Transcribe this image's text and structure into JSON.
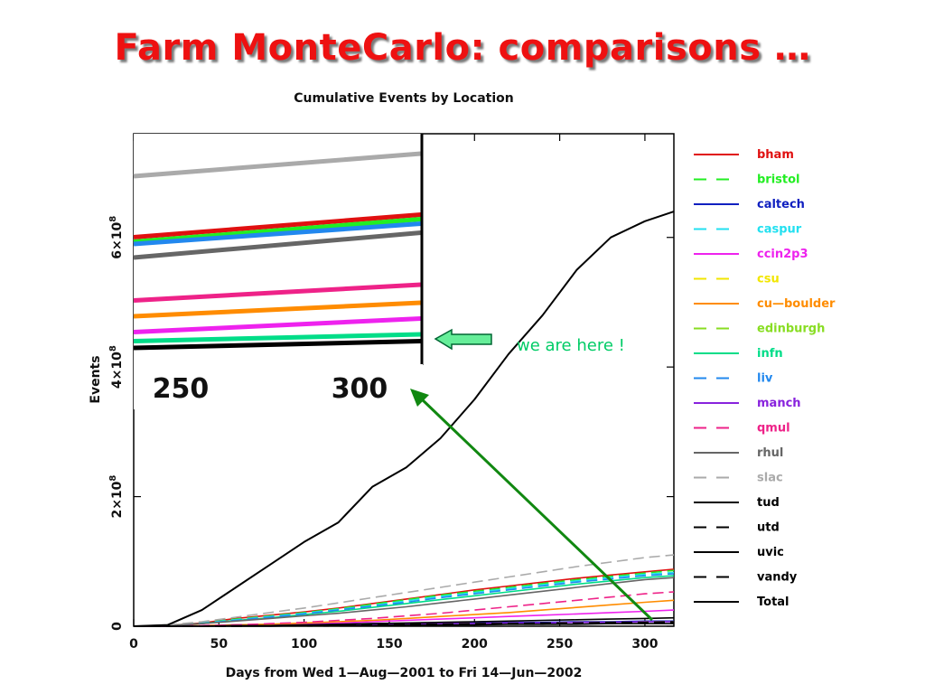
{
  "slide": {
    "title": "Farm MonteCarlo: comparisons …"
  },
  "annotation": {
    "text": "we are here !",
    "color": "#00cc66"
  },
  "chart_data": {
    "type": "line",
    "title": "Cumulative Events by Location",
    "xlabel": "Days from Wed 1—Aug—2001 to Fri 14—Jun—2002",
    "ylabel": "Events",
    "xlim": [
      0,
      317
    ],
    "ylim": [
      0,
      760000000
    ],
    "x_ticks": [
      {
        "value": 0,
        "label": "0"
      },
      {
        "value": 50,
        "label": "50"
      },
      {
        "value": 100,
        "label": "100"
      },
      {
        "value": 150,
        "label": "150"
      },
      {
        "value": 200,
        "label": "200"
      },
      {
        "value": 250,
        "label": "250"
      },
      {
        "value": 300,
        "label": "300"
      }
    ],
    "y_ticks": [
      {
        "value": 0,
        "base": "0",
        "exp": ""
      },
      {
        "value": 200000000,
        "base": "2×10",
        "exp": "8"
      },
      {
        "value": 400000000,
        "base": "4×10",
        "exp": "8"
      },
      {
        "value": 600000000,
        "base": "6×10",
        "exp": "8"
      }
    ],
    "legend_position": "right",
    "x": [
      0,
      20,
      40,
      60,
      80,
      100,
      120,
      140,
      160,
      180,
      200,
      220,
      240,
      260,
      280,
      300,
      317
    ],
    "series": [
      {
        "name": "bham",
        "color": "#e01010",
        "dash": false,
        "values": [
          0,
          1000000,
          5000000,
          12000000,
          17000000,
          22000000,
          28000000,
          35000000,
          42000000,
          49000000,
          56000000,
          62000000,
          68000000,
          74000000,
          79000000,
          84000000,
          88000000
        ]
      },
      {
        "name": "bristol",
        "color": "#22ee22",
        "dash": true,
        "values": [
          0,
          1000000,
          5000000,
          11000000,
          16000000,
          21000000,
          27000000,
          34000000,
          41000000,
          48000000,
          54000000,
          60000000,
          66000000,
          72000000,
          77000000,
          82000000,
          86000000
        ]
      },
      {
        "name": "caltech",
        "color": "#1020c0",
        "dash": false,
        "values": [
          0,
          0,
          1000000,
          2000000,
          2000000,
          3000000,
          3000000,
          4000000,
          4000000,
          5000000,
          5000000,
          6000000,
          6000000,
          7000000,
          7000000,
          8000000,
          8000000
        ]
      },
      {
        "name": "caspur",
        "color": "#22e0f0",
        "dash": true,
        "values": [
          0,
          1000000,
          5000000,
          10000000,
          15000000,
          20000000,
          26000000,
          32000000,
          39000000,
          46000000,
          52000000,
          58000000,
          64000000,
          70000000,
          75000000,
          80000000,
          83000000
        ]
      },
      {
        "name": "ccin2p3",
        "color": "#ee22ee",
        "dash": false,
        "values": [
          0,
          0,
          1000000,
          2000000,
          3000000,
          4000000,
          5000000,
          7000000,
          9000000,
          11000000,
          13000000,
          15000000,
          17000000,
          19000000,
          21000000,
          23000000,
          25000000
        ]
      },
      {
        "name": "csu",
        "color": "#f2e600",
        "dash": true,
        "values": [
          0,
          0,
          0,
          1000000,
          1000000,
          2000000,
          2000000,
          3000000,
          3000000,
          4000000,
          4000000,
          5000000,
          5000000,
          6000000,
          6000000,
          7000000,
          7000000
        ]
      },
      {
        "name": "cu—boulder",
        "color": "#ff8c00",
        "dash": false,
        "values": [
          0,
          0,
          1000000,
          2000000,
          3000000,
          5000000,
          7000000,
          9000000,
          12000000,
          15000000,
          18000000,
          21000000,
          25000000,
          29000000,
          33000000,
          37000000,
          40000000
        ]
      },
      {
        "name": "edinburgh",
        "color": "#88dd22",
        "dash": true,
        "values": [
          0,
          0,
          0,
          0,
          1000000,
          1000000,
          1000000,
          2000000,
          2000000,
          3000000,
          3000000,
          4000000,
          4000000,
          5000000,
          5000000,
          6000000,
          6000000
        ]
      },
      {
        "name": "infn",
        "color": "#00dd88",
        "dash": false,
        "values": [
          0,
          1000000,
          4000000,
          9000000,
          13000000,
          18000000,
          23000000,
          29000000,
          35000000,
          41000000,
          47000000,
          53000000,
          59000000,
          65000000,
          70000000,
          75000000,
          78000000
        ]
      },
      {
        "name": "liv",
        "color": "#2288ee",
        "dash": true,
        "values": [
          0,
          1000000,
          4000000,
          9000000,
          14000000,
          19000000,
          25000000,
          31000000,
          37000000,
          44000000,
          50000000,
          56000000,
          62000000,
          68000000,
          73000000,
          78000000,
          81000000
        ]
      },
      {
        "name": "manch",
        "color": "#8822dd",
        "dash": false,
        "values": [
          0,
          0,
          0,
          1000000,
          1000000,
          2000000,
          2000000,
          3000000,
          3000000,
          4000000,
          4000000,
          5000000,
          5000000,
          6000000,
          6000000,
          7000000,
          7000000
        ]
      },
      {
        "name": "qmul",
        "color": "#ee2288",
        "dash": true,
        "values": [
          0,
          0,
          1000000,
          2000000,
          4000000,
          6000000,
          9000000,
          12000000,
          16000000,
          20000000,
          25000000,
          30000000,
          35000000,
          40000000,
          45000000,
          50000000,
          53000000
        ]
      },
      {
        "name": "rhul",
        "color": "#666666",
        "dash": false,
        "values": [
          0,
          1000000,
          4000000,
          8000000,
          12000000,
          16000000,
          20000000,
          25000000,
          30000000,
          36000000,
          42000000,
          48000000,
          54000000,
          60000000,
          66000000,
          72000000,
          75000000
        ]
      },
      {
        "name": "slac",
        "color": "#aaaaaa",
        "dash": true,
        "values": [
          0,
          2000000,
          7000000,
          14000000,
          21000000,
          28000000,
          36000000,
          44000000,
          52000000,
          60000000,
          68000000,
          76000000,
          84000000,
          92000000,
          99000000,
          106000000,
          110000000
        ]
      },
      {
        "name": "tud",
        "color": "#000000",
        "dash": false,
        "values": [
          0,
          0,
          0,
          1000000,
          1000000,
          2000000,
          3000000,
          4000000,
          5000000,
          6000000,
          7000000,
          8000000,
          9000000,
          10000000,
          11000000,
          12000000,
          13000000
        ]
      },
      {
        "name": "utd",
        "color": "#000000",
        "dash": true,
        "values": [
          0,
          0,
          0,
          0,
          1000000,
          1000000,
          2000000,
          2000000,
          3000000,
          3000000,
          4000000,
          4000000,
          5000000,
          5000000,
          6000000,
          6000000,
          7000000
        ]
      },
      {
        "name": "uvic",
        "color": "#000000",
        "dash": false,
        "values": [
          0,
          0,
          0,
          0,
          0,
          1000000,
          1000000,
          1000000,
          2000000,
          2000000,
          2000000,
          3000000,
          3000000,
          3000000,
          4000000,
          4000000,
          4000000
        ]
      },
      {
        "name": "vandy",
        "color": "#000000",
        "dash": true,
        "values": [
          0,
          0,
          0,
          0,
          1000000,
          1000000,
          1000000,
          2000000,
          2000000,
          2000000,
          3000000,
          3000000,
          3000000,
          4000000,
          4000000,
          5000000,
          5000000
        ]
      },
      {
        "name": "Total",
        "color": "#000000",
        "dash": false,
        "values": [
          0,
          2000000,
          25000000,
          60000000,
          95000000,
          130000000,
          160000000,
          215000000,
          245000000,
          290000000,
          350000000,
          420000000,
          480000000,
          550000000,
          600000000,
          625000000,
          640000000
        ]
      }
    ],
    "inset": {
      "tick_labels": [
        "250",
        "300"
      ],
      "lines": [
        {
          "name": "slac",
          "color": "#aaaaaa",
          "values": [
            0.82,
            0.92
          ]
        },
        {
          "name": "bham",
          "color": "#e01010",
          "values": [
            0.55,
            0.65
          ]
        },
        {
          "name": "bristol",
          "color": "#22ee22",
          "values": [
            0.53,
            0.63
          ]
        },
        {
          "name": "liv",
          "color": "#2288ee",
          "values": [
            0.52,
            0.61
          ]
        },
        {
          "name": "rhul",
          "color": "#666666",
          "values": [
            0.46,
            0.57
          ]
        },
        {
          "name": "qmul",
          "color": "#ee2288",
          "values": [
            0.27,
            0.34
          ]
        },
        {
          "name": "cu—boulder",
          "color": "#ff8c00",
          "values": [
            0.2,
            0.26
          ]
        },
        {
          "name": "ccin2p3",
          "color": "#ee22ee",
          "values": [
            0.13,
            0.19
          ]
        },
        {
          "name": "infn",
          "color": "#00dd88",
          "values": [
            0.09,
            0.12
          ]
        },
        {
          "name": "tud",
          "color": "#000000",
          "values": [
            0.06,
            0.09
          ]
        }
      ]
    }
  }
}
